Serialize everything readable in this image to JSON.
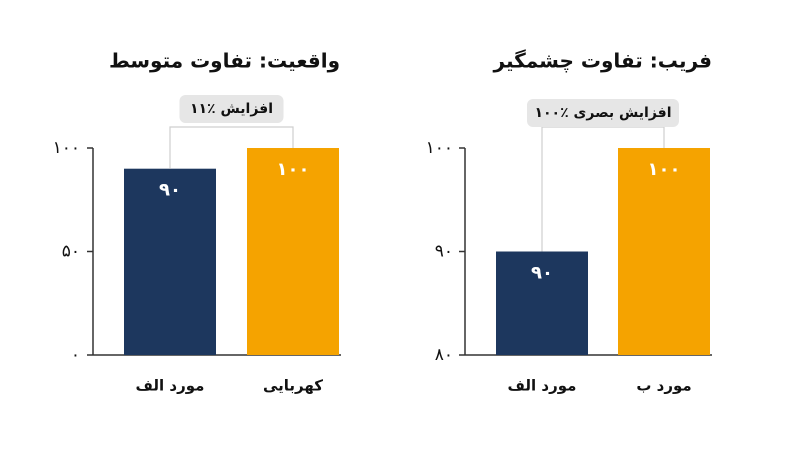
{
  "colors": {
    "navy": "#1d375e",
    "orange": "#f5a300",
    "text": "#111111",
    "label_bg": "#e6e6e6",
    "connector": "#cfcfcf"
  },
  "chart_data": [
    {
      "type": "bar",
      "title": "واقعیت: تفاوت متوسط",
      "categories": [
        "مورد الف",
        "کهربایی"
      ],
      "values": [
        90,
        100
      ],
      "value_labels": [
        "۹۰",
        "۱۰۰"
      ],
      "bar_colors": [
        "#1d375e",
        "#f5a300"
      ],
      "ylim": [
        0,
        100
      ],
      "yticks": [
        {
          "value": 0,
          "label": "۰"
        },
        {
          "value": 50,
          "label": "۵۰"
        },
        {
          "value": 100,
          "label": "۱۰۰"
        }
      ],
      "annotation": "۱۱٪ افزایش",
      "xlabel": "",
      "ylabel": "",
      "grid": false
    },
    {
      "type": "bar",
      "title": "فریب: تفاوت چشمگیر",
      "categories": [
        "مورد الف",
        "مورد ب"
      ],
      "values": [
        90,
        100
      ],
      "value_labels": [
        "۹۰",
        "۱۰۰"
      ],
      "bar_colors": [
        "#1d375e",
        "#f5a300"
      ],
      "ylim": [
        80,
        100
      ],
      "yticks": [
        {
          "value": 80,
          "label": "۸۰"
        },
        {
          "value": 90,
          "label": "۹۰"
        },
        {
          "value": 100,
          "label": "۱۰۰"
        }
      ],
      "annotation": "۱۰۰٪ افزایش بصری",
      "xlabel": "",
      "ylabel": "",
      "grid": false
    }
  ]
}
